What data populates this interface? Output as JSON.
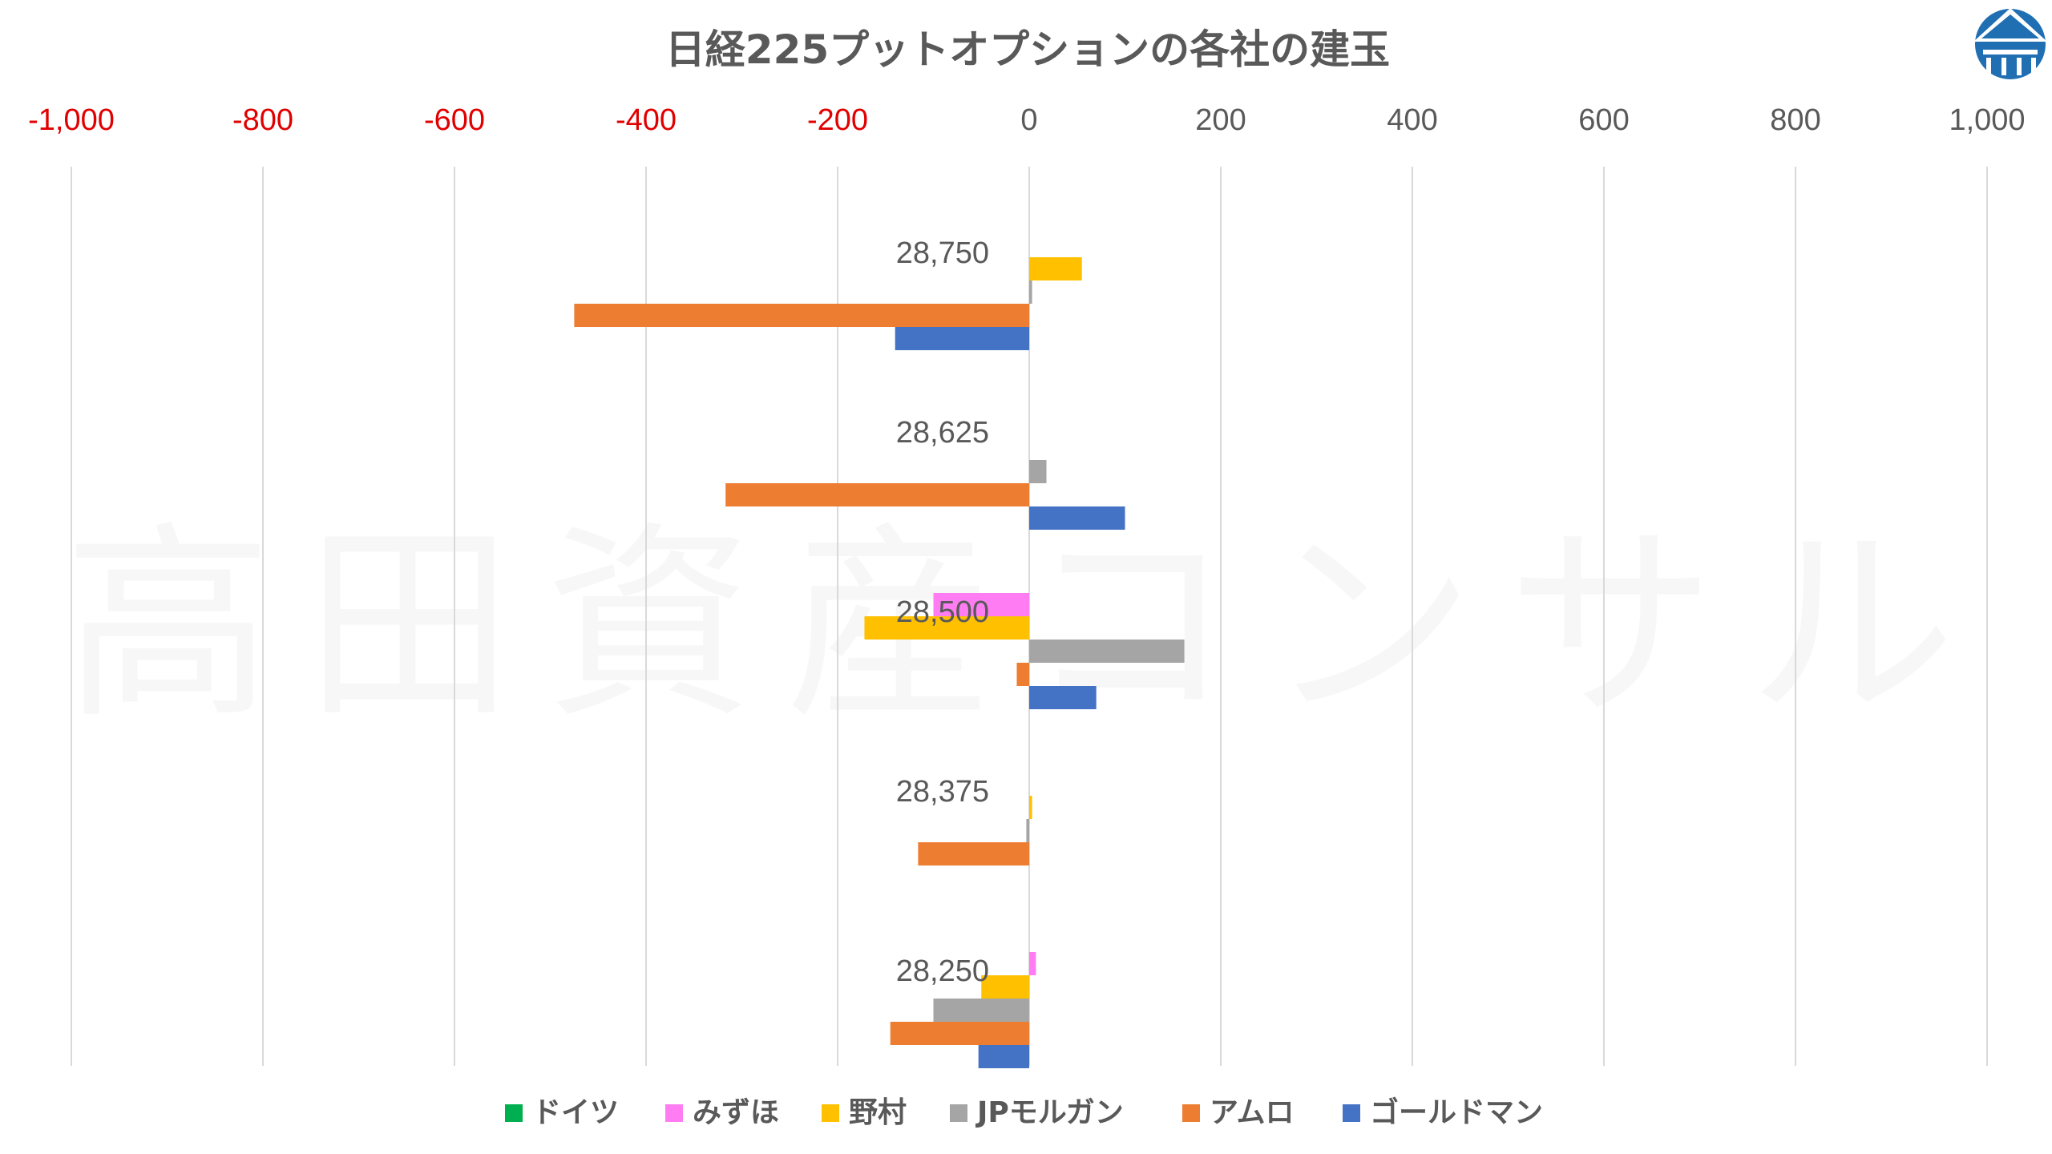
{
  "chart_data": {
    "type": "bar",
    "orientation": "horizontal",
    "title": "日経225プットオプションの各社の建玉",
    "xlim": [
      -1000,
      1000
    ],
    "x_ticks": [
      {
        "value": -1000,
        "label": "-1,000"
      },
      {
        "value": -800,
        "label": "-800"
      },
      {
        "value": -600,
        "label": "-600"
      },
      {
        "value": -400,
        "label": "-400"
      },
      {
        "value": -200,
        "label": "-200"
      },
      {
        "value": 0,
        "label": "0"
      },
      {
        "value": 200,
        "label": "200"
      },
      {
        "value": 400,
        "label": "400"
      },
      {
        "value": 600,
        "label": "600"
      },
      {
        "value": 800,
        "label": "800"
      },
      {
        "value": 1000,
        "label": "1,000"
      }
    ],
    "categories": [
      "28,750",
      "28,625",
      "28,500",
      "28,375",
      "28,250"
    ],
    "series": [
      {
        "name": "ドイツ",
        "color": "#00b050",
        "values": [
          0,
          0,
          0,
          0,
          0
        ]
      },
      {
        "name": "みずほ",
        "color": "#ff7cf2",
        "values": [
          0,
          0,
          -100,
          0,
          7
        ]
      },
      {
        "name": "野村",
        "color": "#ffc000",
        "values": [
          55,
          0,
          -172,
          3,
          -50
        ]
      },
      {
        "name": "JPモルガン",
        "color": "#a5a5a5",
        "values": [
          3,
          18,
          162,
          -3,
          -100
        ]
      },
      {
        "name": "アムロ",
        "color": "#ed7d31",
        "values": [
          -475,
          -317,
          -13,
          -116,
          -145
        ]
      },
      {
        "name": "ゴールドマン",
        "color": "#4472c4",
        "values": [
          -140,
          100,
          70,
          0,
          -53
        ]
      }
    ],
    "grid": true,
    "legend_position": "bottom"
  },
  "watermark": "高田資産コンサル",
  "colors": {
    "negative_tick": "#e00000",
    "positive_tick": "#595959",
    "grid": "#d9d9d9",
    "logo": "#1f6fb2"
  },
  "logo_icon": "roof-building-logo-icon"
}
